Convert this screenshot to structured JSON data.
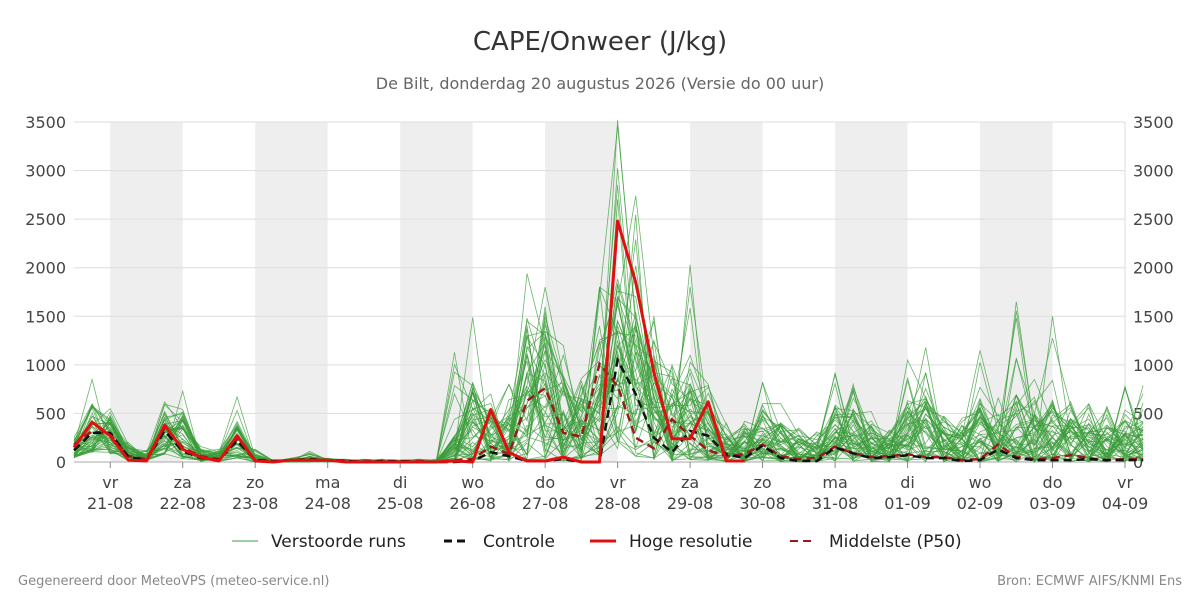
{
  "chart_data": {
    "type": "line",
    "title": "CAPE/Onweer (J/kg)",
    "subtitle": "De Bilt, donderdag 20 augustus 2026 (Versie do 00 uur)",
    "xlabel": "",
    "ylabel": "",
    "ylim": [
      0,
      3500
    ],
    "y_ticks": [
      0,
      500,
      1000,
      1500,
      2000,
      2500,
      3000,
      3500
    ],
    "x_range": [
      "2026-08-20T12:00",
      "2026-09-04T00:00"
    ],
    "x_ticks": [
      {
        "day": "vr",
        "date": "21-08"
      },
      {
        "day": "za",
        "date": "22-08"
      },
      {
        "day": "zo",
        "date": "23-08"
      },
      {
        "day": "ma",
        "date": "24-08"
      },
      {
        "day": "di",
        "date": "25-08"
      },
      {
        "day": "wo",
        "date": "26-08"
      },
      {
        "day": "do",
        "date": "27-08"
      },
      {
        "day": "vr",
        "date": "28-08"
      },
      {
        "day": "za",
        "date": "29-08"
      },
      {
        "day": "zo",
        "date": "30-08"
      },
      {
        "day": "ma",
        "date": "31-08"
      },
      {
        "day": "di",
        "date": "01-09"
      },
      {
        "day": "wo",
        "date": "02-09"
      },
      {
        "day": "do",
        "date": "03-09"
      },
      {
        "day": "vr",
        "date": "04-09"
      }
    ],
    "weekend_shading": [
      [
        "21-08",
        "22-08"
      ],
      [
        "23-08",
        "24-08"
      ],
      [
        "25-08",
        "26-08"
      ],
      [
        "27-08",
        "28-08"
      ],
      [
        "29-08",
        "30-08"
      ],
      [
        "31-08",
        "01-09"
      ],
      [
        "02-09",
        "03-09"
      ]
    ],
    "grid": true,
    "legend_position": "bottom",
    "colors": {
      "perturbed": "#3a9c3a",
      "control": "#111111",
      "high_res": "#e01010",
      "median": "#9b1b1b",
      "shade": "#eeeeee",
      "grid": "#dddddd"
    },
    "series": [
      {
        "name": "Hoge resolutie",
        "role": "high_res",
        "x_hours": [
          0,
          6,
          12,
          18,
          24,
          30,
          36,
          42,
          48,
          54,
          60,
          66,
          72,
          78,
          84,
          90,
          96,
          102,
          108,
          114,
          120,
          126,
          132,
          138,
          144,
          150,
          156,
          162,
          168,
          174,
          180,
          186,
          192,
          198,
          204,
          210,
          216,
          222
        ],
        "values": [
          150,
          410,
          270,
          20,
          10,
          380,
          130,
          50,
          10,
          270,
          10,
          0,
          20,
          20,
          20,
          0,
          0,
          0,
          0,
          0,
          0,
          10,
          0,
          540,
          100,
          10,
          10,
          50,
          0,
          0,
          2480,
          1850,
          920,
          240,
          240,
          620,
          10,
          10
        ]
      },
      {
        "name": "Controle",
        "role": "control",
        "x_hours": [
          0,
          6,
          12,
          18,
          24,
          30,
          36,
          42,
          48,
          54,
          60,
          66,
          72,
          78,
          84,
          90,
          96,
          102,
          108,
          114,
          120,
          126,
          132,
          138,
          144,
          150,
          156,
          162,
          168,
          174,
          180,
          186,
          192,
          198,
          204,
          210,
          216,
          222,
          228,
          234,
          240,
          246,
          252,
          258,
          264,
          270,
          276,
          282,
          288,
          294,
          300,
          306,
          312,
          318,
          324,
          330,
          336,
          342,
          348,
          354
        ],
        "values": [
          120,
          300,
          300,
          50,
          20,
          320,
          110,
          40,
          20,
          220,
          20,
          10,
          20,
          30,
          20,
          10,
          0,
          10,
          10,
          0,
          0,
          0,
          10,
          100,
          60,
          10,
          10,
          30,
          0,
          0,
          1050,
          700,
          250,
          100,
          320,
          270,
          80,
          40,
          170,
          40,
          10,
          10,
          150,
          90,
          40,
          50,
          70,
          40,
          40,
          10,
          20,
          130,
          40,
          20,
          20,
          20,
          30,
          20,
          20,
          20
        ]
      },
      {
        "name": "Middelste (P50)",
        "role": "median",
        "x_hours": [
          0,
          6,
          12,
          18,
          24,
          30,
          36,
          42,
          48,
          54,
          60,
          66,
          72,
          78,
          84,
          90,
          96,
          102,
          108,
          114,
          120,
          126,
          132,
          138,
          144,
          150,
          156,
          162,
          168,
          174,
          180,
          186,
          192,
          198,
          204,
          210,
          216,
          222,
          228,
          234,
          240,
          246,
          252,
          258,
          264,
          270,
          276,
          282,
          288,
          294,
          300,
          306,
          312,
          318,
          324,
          330,
          336,
          342,
          348,
          354
        ],
        "values": [
          180,
          320,
          280,
          60,
          30,
          350,
          150,
          60,
          30,
          230,
          20,
          10,
          20,
          20,
          20,
          10,
          10,
          10,
          10,
          10,
          0,
          20,
          30,
          160,
          80,
          630,
          760,
          300,
          260,
          1010,
          780,
          250,
          140,
          440,
          270,
          120,
          60,
          80,
          180,
          60,
          30,
          40,
          160,
          90,
          50,
          60,
          80,
          50,
          50,
          20,
          30,
          180,
          50,
          30,
          40,
          70,
          40,
          20,
          30,
          30
        ]
      },
      {
        "name": "Verstoorde runs",
        "role": "perturbed",
        "count": 50,
        "x_hours": [
          0,
          6,
          12,
          18,
          24,
          30,
          36,
          42,
          48,
          54,
          60,
          66,
          72,
          78,
          84,
          90,
          96,
          102,
          108,
          114,
          120,
          126,
          132,
          138,
          144,
          150,
          156,
          162,
          168,
          174,
          180,
          186,
          192,
          198,
          204,
          210,
          216,
          222,
          228,
          234,
          240,
          246,
          252,
          258,
          264,
          270,
          276,
          282,
          288,
          294,
          300,
          306,
          312,
          318,
          324,
          330,
          336,
          342,
          348,
          354
        ],
        "envelope_max": [
          250,
          850,
          550,
          200,
          120,
          620,
          730,
          160,
          130,
          670,
          130,
          20,
          40,
          110,
          40,
          30,
          30,
          30,
          20,
          30,
          30,
          1130,
          1490,
          700,
          800,
          1940,
          1800,
          1200,
          860,
          1800,
          3520,
          2740,
          1500,
          1000,
          2030,
          800,
          400,
          420,
          820,
          600,
          350,
          310,
          920,
          800,
          520,
          330,
          1050,
          1180,
          470,
          450,
          1150,
          660,
          1650,
          850,
          1500,
          620,
          600,
          570,
          780,
          790
        ],
        "p90": [
          220,
          600,
          450,
          160,
          90,
          480,
          520,
          120,
          100,
          420,
          80,
          15,
          30,
          60,
          30,
          20,
          20,
          20,
          15,
          20,
          20,
          300,
          900,
          500,
          550,
          1300,
          1350,
          900,
          700,
          1300,
          2000,
          1700,
          1100,
          700,
          1100,
          650,
          300,
          320,
          600,
          420,
          250,
          220,
          600,
          550,
          380,
          250,
          700,
          650,
          350,
          330,
          700,
          450,
          700,
          500,
          650,
          450,
          400,
          380,
          450,
          420
        ],
        "p10": [
          40,
          100,
          80,
          10,
          5,
          80,
          30,
          5,
          5,
          40,
          0,
          0,
          0,
          0,
          0,
          0,
          0,
          0,
          0,
          0,
          0,
          0,
          0,
          10,
          10,
          20,
          30,
          10,
          5,
          60,
          100,
          60,
          20,
          10,
          20,
          10,
          0,
          0,
          10,
          0,
          0,
          0,
          10,
          5,
          0,
          0,
          5,
          0,
          0,
          0,
          0,
          5,
          0,
          0,
          0,
          0,
          0,
          0,
          0,
          0
        ]
      }
    ],
    "legend": [
      {
        "label": "Verstoorde runs",
        "role": "perturbed"
      },
      {
        "label": "Controle",
        "role": "control"
      },
      {
        "label": "Hoge resolutie",
        "role": "high_res"
      },
      {
        "label": "Middelste (P50)",
        "role": "median"
      }
    ]
  },
  "footer": {
    "left": "Gegenereerd door MeteoVPS (meteo-service.nl)",
    "right": "Bron: ECMWF AIFS/KNMI Ens"
  }
}
